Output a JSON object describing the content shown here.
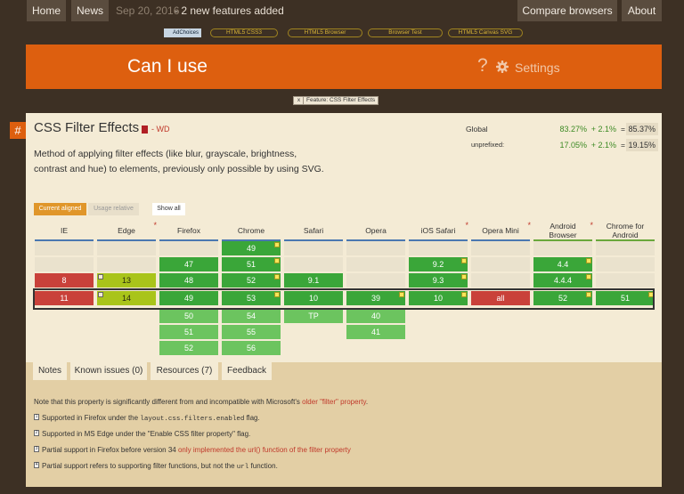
{
  "topbar": {
    "home": "Home",
    "news": "News",
    "news_date": "Sep 20, 2016",
    "news_text": "- 2 new features added",
    "compare": "Compare browsers",
    "about": "About"
  },
  "ads": {
    "adchoices": "AdChoices",
    "links": [
      "HTML5 CSS3",
      "HTML5 Browser",
      "Browser Test",
      "HTML5 Canvas SVG"
    ]
  },
  "header": {
    "title": "Can I use",
    "help": "?",
    "settings": "Settings"
  },
  "feature_tag": {
    "close": "x",
    "label": "Feature: CSS Filter Effects"
  },
  "feature": {
    "hash": "#",
    "title": "CSS Filter Effects",
    "status": "- WD",
    "description": "Method of applying filter effects (like blur, grayscale, brightness, contrast and hue) to elements, previously only possible by using SVG."
  },
  "stats": {
    "global_label": "Global",
    "global_full": "83.27%",
    "global_partial": "+ 2.1%",
    "global_eq": "=",
    "global_total": "85.37%",
    "unprefixed_label": "unprefixed:",
    "unprefixed_full": "17.05%",
    "unprefixed_partial": "+ 2.1%",
    "unprefixed_eq": "=",
    "unprefixed_total": "19.15%"
  },
  "controls": {
    "current": "Current aligned",
    "relative": "Usage relative",
    "show_all": "Show all"
  },
  "browsers": [
    {
      "name": "IE",
      "star": "",
      "cells": [
        "",
        "",
        "8",
        "11",
        "",
        "",
        ""
      ]
    },
    {
      "name": "Edge",
      "star": "*",
      "cells": [
        "",
        "",
        "13",
        "14",
        "",
        "",
        ""
      ]
    },
    {
      "name": "Firefox",
      "star": "",
      "cells": [
        "",
        "47",
        "48",
        "49",
        "50",
        "51",
        "52"
      ]
    },
    {
      "name": "Chrome",
      "star": "",
      "cells": [
        "49",
        "51",
        "52",
        "53",
        "54",
        "55",
        "56"
      ]
    },
    {
      "name": "Safari",
      "star": "",
      "cells": [
        "",
        "",
        "9.1",
        "10",
        "TP",
        "",
        ""
      ]
    },
    {
      "name": "Opera",
      "star": "",
      "cells": [
        "",
        "",
        "",
        "39",
        "40",
        "41",
        ""
      ]
    },
    {
      "name": "iOS Safari",
      "star": "*",
      "cells": [
        "",
        "9.2",
        "9.3",
        "10",
        "",
        "",
        ""
      ]
    },
    {
      "name": "Opera Mini",
      "star": "*",
      "cells": [
        "",
        "",
        "",
        "all",
        "",
        "",
        ""
      ]
    },
    {
      "name": "Android Browser",
      "star": "*",
      "cells": [
        "",
        "4.4",
        "4.4.4",
        "52",
        "",
        "",
        ""
      ]
    },
    {
      "name": "Chrome for Android",
      "star": "",
      "cells": [
        "",
        "",
        "",
        "51",
        "",
        "",
        ""
      ]
    }
  ],
  "tabs": {
    "notes": "Notes",
    "issues": "Known issues (0)",
    "resources": "Resources (7)",
    "feedback": "Feedback"
  },
  "notes": {
    "main_text": "Note that this property is significantly different from and incompatible with Microsoft's",
    "main_link": "older \"filter\" property",
    "main_end": ".",
    "n1_num": "1",
    "n1_pre": "Supported in Firefox under the",
    "n1_code": "layout.css.filters.enabled",
    "n1_post": "flag.",
    "n2_num": "2",
    "n2_text": "Supported in MS Edge under the \"Enable CSS filter property\" flag.",
    "n3_num": "3",
    "n3_pre": "Partial support in Firefox before version 34",
    "n3_link": "only implemented the url() function of the filter property",
    "n4_num": "4",
    "n4_pre": "Partial support refers to supporting filter functions, but not the",
    "n4_code": "url",
    "n4_post": "function."
  },
  "colors": {
    "accent": "#dd5f0f",
    "supported": "#3aa639",
    "partial": "#a9c41a",
    "unsupported": "#c9413a"
  }
}
